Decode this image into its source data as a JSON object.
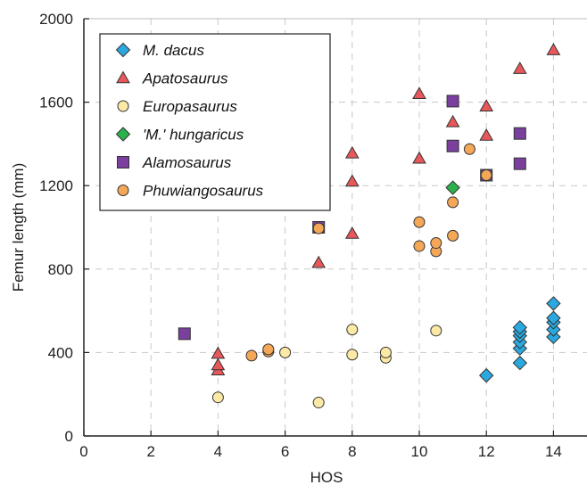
{
  "chart_data": {
    "type": "scatter",
    "title": "",
    "xlabel": "HOS",
    "ylabel": "Femur length (mm)",
    "xlim": [
      0,
      15
    ],
    "ylim": [
      0,
      2000
    ],
    "xticks": [
      0,
      2,
      4,
      6,
      8,
      10,
      12,
      14
    ],
    "yticks": [
      0,
      400,
      800,
      1200,
      1600,
      2000
    ],
    "xtick_labels": [
      "0",
      "2",
      "4",
      "6",
      "8",
      "10",
      "12",
      "14"
    ],
    "ytick_labels": [
      "0",
      "400",
      "800",
      "1200",
      "1600",
      "2000"
    ],
    "grid": true,
    "legend_position": "top-left",
    "series": [
      {
        "name": "M. dacus",
        "marker": "diamond",
        "color": "#2aa9e0",
        "points": [
          [
            12,
            290
          ],
          [
            13,
            350
          ],
          [
            13,
            420
          ],
          [
            13,
            450
          ],
          [
            13,
            480
          ],
          [
            13,
            500
          ],
          [
            13,
            520
          ],
          [
            14,
            475
          ],
          [
            14,
            510
          ],
          [
            14,
            545
          ],
          [
            14,
            565
          ],
          [
            14,
            635
          ]
        ]
      },
      {
        "name": "Apatosaurus",
        "marker": "triangle",
        "color": "#e8585a",
        "points": [
          [
            4,
            315
          ],
          [
            4,
            340
          ],
          [
            4,
            395
          ],
          [
            7,
            830
          ],
          [
            8,
            970
          ],
          [
            8,
            1220
          ],
          [
            8,
            1355
          ],
          [
            10,
            1330
          ],
          [
            10,
            1640
          ],
          [
            11,
            1505
          ],
          [
            12,
            1440
          ],
          [
            12,
            1580
          ],
          [
            13,
            1760
          ],
          [
            14,
            1850
          ]
        ]
      },
      {
        "name": "Europasaurus",
        "marker": "circle",
        "color": "#fbe9a6",
        "points": [
          [
            4,
            185
          ],
          [
            6,
            400
          ],
          [
            7,
            160
          ],
          [
            8,
            390
          ],
          [
            8,
            510
          ],
          [
            9,
            375
          ],
          [
            9,
            400
          ],
          [
            10.5,
            505
          ]
        ]
      },
      {
        "name": "'M.' hungaricus",
        "marker": "diamond",
        "color": "#2bb24c",
        "points": [
          [
            11,
            1190
          ]
        ]
      },
      {
        "name": "Alamosaurus",
        "marker": "square",
        "color": "#7b3f9e",
        "points": [
          [
            3,
            490
          ],
          [
            7,
            1000
          ],
          [
            11,
            1390
          ],
          [
            11,
            1605
          ],
          [
            12,
            1250
          ],
          [
            13,
            1305
          ],
          [
            13,
            1450
          ]
        ]
      },
      {
        "name": "Phuwiangosaurus",
        "marker": "circle",
        "color": "#f4a857",
        "points": [
          [
            5,
            385
          ],
          [
            5.5,
            405
          ],
          [
            5.5,
            415
          ],
          [
            7,
            995
          ],
          [
            10,
            910
          ],
          [
            10,
            1025
          ],
          [
            10.5,
            885
          ],
          [
            10.5,
            925
          ],
          [
            11,
            960
          ],
          [
            11,
            1120
          ],
          [
            11.5,
            1375
          ],
          [
            12,
            1250
          ]
        ]
      }
    ]
  }
}
